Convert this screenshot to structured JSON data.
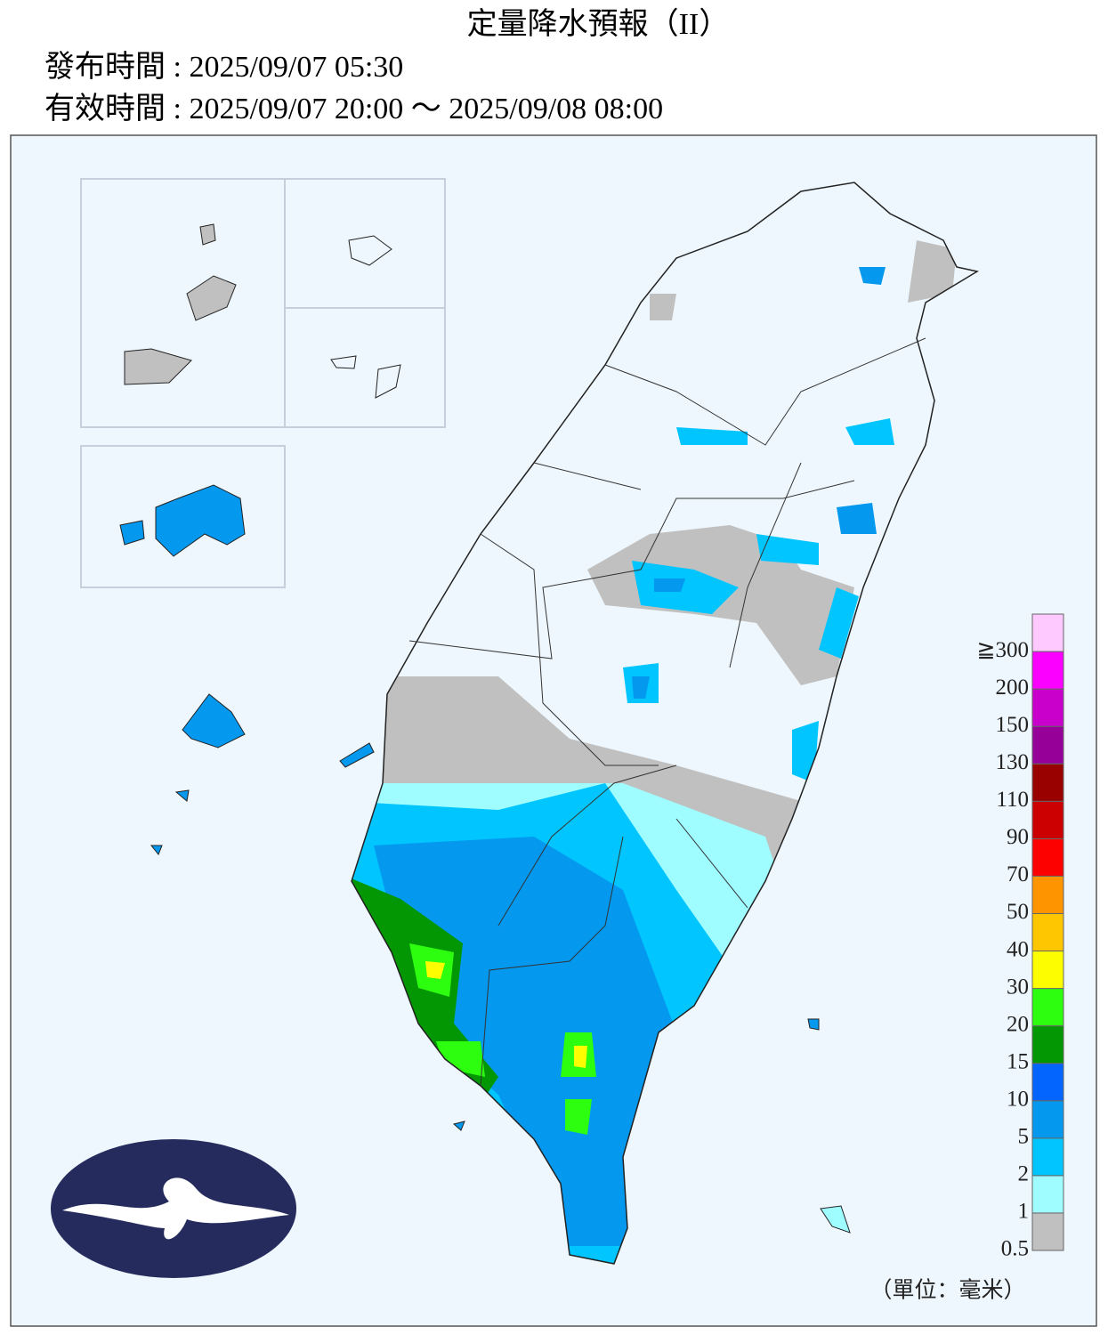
{
  "header": {
    "title": "定量降水預報（II）",
    "issued": "發布時間 : 2025/09/07 05:30",
    "valid": "有效時間 : 2025/09/07 20:00 ～ 2025/09/08 08:00"
  },
  "legend": {
    "labels": [
      "0.5",
      "1",
      "2",
      "5",
      "10",
      "15",
      "20",
      "30",
      "40",
      "50",
      "70",
      "90",
      "110",
      "130",
      "150",
      "200",
      "≧300"
    ],
    "colors": [
      "#c0c0c0",
      "#9ffcff",
      "#00c5ff",
      "#0498ee",
      "#0365fe",
      "#039703",
      "#2dfd0e",
      "#fdfd00",
      "#fec600",
      "#fe9500",
      "#fd0000",
      "#cc0000",
      "#990000",
      "#960099",
      "#c900cc",
      "#fb00ff",
      "#fdc9fe"
    ],
    "unit": "（單位：毫米）"
  }
}
